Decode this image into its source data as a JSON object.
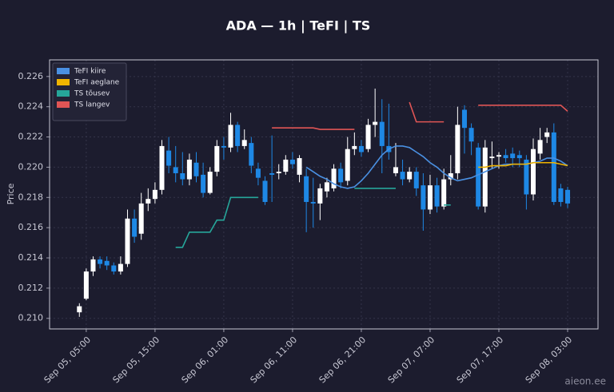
{
  "chart_data": {
    "type": "candlestick",
    "title": "ADA — 1h  |  TeFI  |  TS",
    "y_label": "Price",
    "up_color": "#ffffff",
    "down_color": "#1e88e5",
    "grid": true,
    "legend": "upper left",
    "xlim": [
      "Sep 04, 23:40",
      "Sep 08, 07:25"
    ],
    "xticks": [
      "Sep 05, 05:00",
      "Sep 05, 15:00",
      "Sep 06, 01:00",
      "Sep 06, 11:00",
      "Sep 06, 21:00",
      "Sep 07, 07:00",
      "Sep 07, 17:00",
      "Sep 08, 03:00"
    ],
    "ylim": [
      0.2093,
      0.2271
    ],
    "yticks": [
      {
        "value": 0.21,
        "label": "0.210"
      },
      0.212,
      0.214,
      0.216,
      0.218,
      {
        "value": 0.22,
        "label": "0.220"
      },
      0.222,
      0.224,
      0.226
    ],
    "x": [
      "Sep 05, 04:00",
      "Sep 05, 05:00",
      "Sep 05, 06:00",
      "Sep 05, 07:00",
      "Sep 05, 08:00",
      "Sep 05, 09:00",
      "Sep 05, 10:00",
      "Sep 05, 11:00",
      "Sep 05, 12:00",
      "Sep 05, 13:00",
      "Sep 05, 14:00",
      "Sep 05, 15:00",
      "Sep 05, 16:00",
      "Sep 05, 17:00",
      "Sep 05, 18:00",
      "Sep 05, 19:00",
      "Sep 05, 20:00",
      "Sep 05, 21:00",
      "Sep 05, 22:00",
      "Sep 05, 23:00",
      "Sep 06, 00:00",
      "Sep 06, 01:00",
      "Sep 06, 02:00",
      "Sep 06, 03:00",
      "Sep 06, 04:00",
      "Sep 06, 05:00",
      "Sep 06, 06:00",
      "Sep 06, 07:00",
      "Sep 06, 08:00",
      "Sep 06, 09:00",
      "Sep 06, 10:00",
      "Sep 06, 11:00",
      "Sep 06, 12:00",
      "Sep 06, 13:00",
      "Sep 06, 14:00",
      "Sep 06, 15:00",
      "Sep 06, 16:00",
      "Sep 06, 17:00",
      "Sep 06, 18:00",
      "Sep 06, 19:00",
      "Sep 06, 20:00",
      "Sep 06, 21:00",
      "Sep 06, 22:00",
      "Sep 06, 23:00",
      "Sep 07, 00:00",
      "Sep 07, 01:00",
      "Sep 07, 02:00",
      "Sep 07, 03:00",
      "Sep 07, 04:00",
      "Sep 07, 05:00",
      "Sep 07, 06:00",
      "Sep 07, 07:00",
      "Sep 07, 08:00",
      "Sep 07, 09:00",
      "Sep 07, 10:00",
      "Sep 07, 11:00",
      "Sep 07, 12:00",
      "Sep 07, 13:00",
      "Sep 07, 14:00",
      "Sep 07, 15:00",
      "Sep 07, 16:00",
      "Sep 07, 17:00",
      "Sep 07, 18:00",
      "Sep 07, 19:00",
      "Sep 07, 20:00",
      "Sep 07, 21:00",
      "Sep 07, 22:00",
      "Sep 07, 23:00",
      "Sep 08, 00:00",
      "Sep 08, 01:00",
      "Sep 08, 02:00",
      "Sep 08, 03:00"
    ],
    "open": [
      0.2104,
      0.2113,
      0.2131,
      0.2139,
      0.2138,
      0.2135,
      0.2131,
      0.2136,
      0.2166,
      0.2156,
      0.2176,
      0.2179,
      0.2185,
      0.2211,
      0.22,
      0.2196,
      0.2192,
      0.2203,
      0.2195,
      0.2183,
      0.2197,
      0.2214,
      0.2213,
      0.2228,
      0.2214,
      0.2216,
      0.2199,
      0.2191,
      0.2196,
      0.2196,
      0.2197,
      0.2205,
      0.2195,
      0.2194,
      0.2177,
      0.2176,
      0.2184,
      0.2186,
      0.2199,
      0.2191,
      0.2212,
      0.2214,
      0.2212,
      0.2228,
      0.223,
      0.2214,
      0.2196,
      0.2197,
      0.2192,
      0.2197,
      0.2188,
      0.2172,
      0.2188,
      0.2174,
      0.2192,
      0.2196,
      0.2238,
      0.2226,
      0.2213,
      0.2174,
      0.2206,
      0.2207,
      0.2208,
      0.2209,
      0.2208,
      0.2205,
      0.2182,
      0.2209,
      0.222,
      0.2223,
      0.2186,
      0.2185
    ],
    "high": [
      0.211,
      0.2133,
      0.2141,
      0.2141,
      0.2141,
      0.2137,
      0.2141,
      0.2172,
      0.2172,
      0.2183,
      0.2186,
      0.219,
      0.2218,
      0.222,
      0.2214,
      0.221,
      0.2209,
      0.221,
      0.2203,
      0.22,
      0.2218,
      0.222,
      0.2236,
      0.223,
      0.2225,
      0.222,
      0.2203,
      0.2194,
      0.2221,
      0.2202,
      0.2208,
      0.221,
      0.2208,
      0.2199,
      0.2193,
      0.2189,
      0.2193,
      0.2202,
      0.2203,
      0.222,
      0.2223,
      0.2218,
      0.2232,
      0.2252,
      0.2245,
      0.2242,
      0.2216,
      0.2205,
      0.22,
      0.22,
      0.2196,
      0.2195,
      0.2193,
      0.2199,
      0.2208,
      0.224,
      0.2241,
      0.2229,
      0.2216,
      0.2218,
      0.2217,
      0.221,
      0.2212,
      0.2213,
      0.2211,
      0.2208,
      0.2219,
      0.2226,
      0.2226,
      0.2229,
      0.2189,
      0.2187
    ],
    "low": [
      0.2101,
      0.2112,
      0.2128,
      0.2133,
      0.2132,
      0.2129,
      0.2129,
      0.2134,
      0.215,
      0.2152,
      0.2171,
      0.2176,
      0.2182,
      0.2196,
      0.219,
      0.2188,
      0.2188,
      0.219,
      0.218,
      0.2182,
      0.2194,
      0.2205,
      0.221,
      0.221,
      0.2212,
      0.2196,
      0.2188,
      0.2175,
      0.2177,
      0.2192,
      0.2195,
      0.2199,
      0.219,
      0.2157,
      0.216,
      0.2165,
      0.218,
      0.2184,
      0.2186,
      0.2188,
      0.2208,
      0.2207,
      0.221,
      0.222,
      0.2196,
      0.2205,
      0.2194,
      0.2188,
      0.219,
      0.2181,
      0.2158,
      0.2169,
      0.217,
      0.2172,
      0.2188,
      0.2192,
      0.2209,
      0.2208,
      0.2172,
      0.217,
      0.2199,
      0.2199,
      0.2203,
      0.22,
      0.22,
      0.2172,
      0.2178,
      0.2205,
      0.2216,
      0.2175,
      0.2174,
      0.2173
    ],
    "close": [
      0.2108,
      0.2131,
      0.2139,
      0.2136,
      0.2135,
      0.2131,
      0.2136,
      0.2166,
      0.2154,
      0.2176,
      0.2179,
      0.2185,
      0.2214,
      0.2201,
      0.2196,
      0.2192,
      0.2205,
      0.2194,
      0.2183,
      0.2197,
      0.2214,
      0.2213,
      0.2228,
      0.2214,
      0.2218,
      0.2201,
      0.2193,
      0.2177,
      0.2195,
      0.2197,
      0.2205,
      0.2202,
      0.2206,
      0.2177,
      0.2176,
      0.2186,
      0.219,
      0.2199,
      0.219,
      0.2212,
      0.2214,
      0.221,
      0.2228,
      0.223,
      0.2214,
      0.221,
      0.22,
      0.2192,
      0.2197,
      0.2186,
      0.2172,
      0.2188,
      0.2174,
      0.2192,
      0.2196,
      0.2228,
      0.2226,
      0.2217,
      0.2174,
      0.2213,
      0.2207,
      0.2208,
      0.2206,
      0.2206,
      0.2206,
      0.2182,
      0.2212,
      0.2218,
      0.2223,
      0.2177,
      0.2177,
      0.2176
    ],
    "series": [
      {
        "name": "TeFI kiire",
        "color": "#4a90e2",
        "values": [
          null,
          null,
          null,
          null,
          null,
          null,
          null,
          null,
          null,
          null,
          null,
          null,
          null,
          null,
          null,
          null,
          null,
          null,
          null,
          null,
          null,
          null,
          null,
          null,
          null,
          null,
          null,
          null,
          null,
          null,
          null,
          null,
          null,
          0.22,
          0.2197,
          0.2194,
          0.2192,
          0.2189,
          0.2187,
          0.2186,
          0.2187,
          0.2191,
          0.2196,
          0.2202,
          0.2208,
          0.2212,
          0.2214,
          0.2214,
          0.2213,
          0.221,
          0.2207,
          0.2203,
          0.22,
          0.2196,
          0.2193,
          0.2191,
          0.2192,
          0.2193,
          0.2195,
          0.2197,
          0.2199,
          0.2201,
          0.2202,
          0.2202,
          0.2202,
          0.2202,
          0.2203,
          0.2204,
          0.2206,
          0.2206,
          0.2204,
          0.2201
        ]
      },
      {
        "name": "TeFI aeglane",
        "color": "#f0b400",
        "values": [
          null,
          null,
          null,
          null,
          null,
          null,
          null,
          null,
          null,
          null,
          null,
          null,
          null,
          null,
          null,
          null,
          null,
          null,
          null,
          null,
          null,
          null,
          null,
          null,
          null,
          null,
          null,
          null,
          null,
          null,
          null,
          null,
          null,
          null,
          null,
          null,
          null,
          null,
          null,
          null,
          null,
          null,
          null,
          null,
          null,
          null,
          null,
          null,
          null,
          null,
          null,
          null,
          null,
          null,
          null,
          null,
          null,
          null,
          0.22,
          0.22,
          0.2201,
          0.2201,
          0.2201,
          0.2202,
          0.2202,
          0.2202,
          0.2203,
          0.2203,
          0.2203,
          0.2203,
          0.2202,
          0.2201
        ]
      },
      {
        "name": "TS tõusev",
        "color": "#26a69a",
        "values": [
          null,
          null,
          null,
          null,
          null,
          null,
          null,
          null,
          null,
          null,
          null,
          null,
          null,
          null,
          0.2147,
          0.2147,
          0.2157,
          0.2157,
          0.2157,
          0.2157,
          0.2165,
          0.2165,
          0.218,
          0.218,
          0.218,
          0.218,
          0.218,
          null,
          null,
          null,
          null,
          null,
          null,
          null,
          null,
          null,
          null,
          null,
          null,
          null,
          0.2186,
          0.2186,
          0.2186,
          0.2186,
          0.2186,
          0.2186,
          0.2186,
          null,
          null,
          null,
          null,
          null,
          null,
          0.2175,
          0.2175,
          null,
          null,
          null,
          null,
          null,
          null,
          null,
          null,
          null,
          null,
          null,
          null,
          null,
          null,
          null,
          null,
          null
        ]
      },
      {
        "name": "TS langev",
        "color": "#e05555",
        "values": [
          null,
          null,
          null,
          null,
          null,
          null,
          null,
          null,
          null,
          null,
          null,
          null,
          null,
          null,
          null,
          null,
          null,
          null,
          null,
          null,
          null,
          null,
          null,
          null,
          null,
          null,
          null,
          null,
          0.2226,
          0.2226,
          0.2226,
          0.2226,
          0.2226,
          0.2226,
          0.2226,
          0.2225,
          0.2225,
          0.2225,
          0.2225,
          0.2225,
          0.2225,
          null,
          null,
          null,
          null,
          null,
          null,
          null,
          0.2243,
          0.223,
          0.223,
          0.223,
          0.223,
          0.223,
          null,
          null,
          null,
          null,
          0.2241,
          0.2241,
          0.2241,
          0.2241,
          0.2241,
          0.2241,
          0.2241,
          0.2241,
          0.2241,
          0.2241,
          0.2241,
          0.2241,
          0.2241,
          0.2237
        ]
      }
    ]
  },
  "watermark": "aieon.ee"
}
